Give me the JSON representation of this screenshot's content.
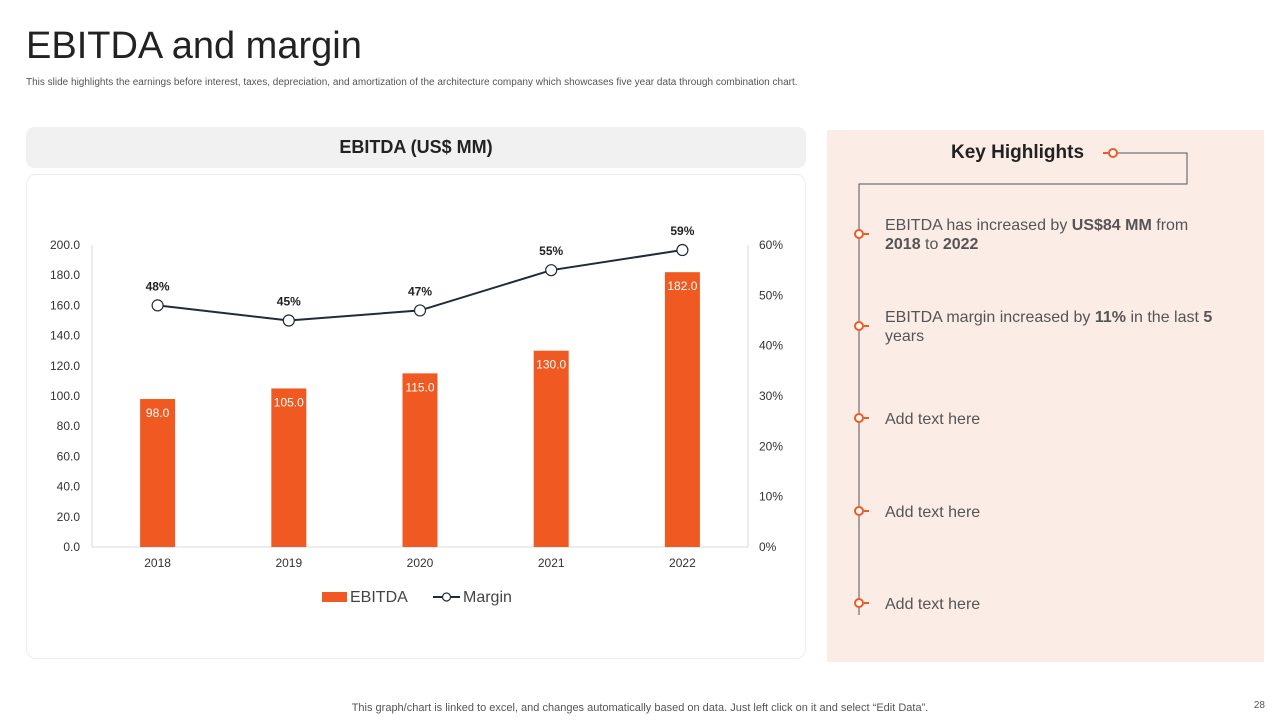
{
  "page": {
    "title": "EBITDA and margin",
    "subtitle": "This slide highlights the earnings before interest, taxes, depreciation, and amortization of the architecture company which showcases five year data through combination chart.",
    "footer": "This graph/chart is linked to excel,  and changes automatically based on data. Just left click on it and select “Edit Data”.",
    "page_number": "28"
  },
  "chart_header": "EBITDA (US$ MM)",
  "chart_data": {
    "type": "bar",
    "title": "EBITDA (US$ MM)",
    "categories": [
      "2018",
      "2019",
      "2020",
      "2021",
      "2022"
    ],
    "series": [
      {
        "name": "EBITDA",
        "type": "bar",
        "axis": "left",
        "values": [
          98.0,
          105.0,
          115.0,
          130.0,
          182.0
        ],
        "labels": [
          "98.0",
          "105.0",
          "115.0",
          "130.0",
          "182.0"
        ]
      },
      {
        "name": "Margin",
        "type": "line",
        "axis": "right",
        "values": [
          48,
          45,
          47,
          55,
          59
        ],
        "labels": [
          "48%",
          "45%",
          "47%",
          "55%",
          "59%"
        ]
      }
    ],
    "ylim": [
      0,
      200
    ],
    "yticks": [
      "0.0",
      "20.0",
      "40.0",
      "60.0",
      "80.0",
      "100.0",
      "120.0",
      "140.0",
      "160.0",
      "180.0",
      "200.0"
    ],
    "y2lim": [
      0,
      60
    ],
    "y2ticks": [
      "0%",
      "10%",
      "20%",
      "30%",
      "40%",
      "50%",
      "60%"
    ],
    "legend": [
      "EBITDA",
      "Margin"
    ],
    "legend_position": "bottom",
    "colors": {
      "bar": "#f05a22",
      "line": "#222a3a"
    }
  },
  "highlights": {
    "title": "Key Highlights",
    "items": [
      {
        "parts": [
          {
            "t": "EBITDA has increased by ",
            "b": false
          },
          {
            "t": "US$84 MM",
            "b": true
          },
          {
            "t": " from ",
            "b": false
          },
          {
            "t": "2018",
            "b": true
          },
          {
            "t": " to ",
            "b": false
          },
          {
            "t": "2022",
            "b": true
          }
        ]
      },
      {
        "parts": [
          {
            "t": "EBITDA margin increased by ",
            "b": false
          },
          {
            "t": "11%",
            "b": true
          },
          {
            "t": " in the last ",
            "b": false
          },
          {
            "t": "5",
            "b": true
          },
          {
            "t": " years",
            "b": false
          }
        ]
      },
      {
        "parts": [
          {
            "t": "Add text here",
            "b": false
          }
        ]
      },
      {
        "parts": [
          {
            "t": "Add text here",
            "b": false
          }
        ]
      },
      {
        "parts": [
          {
            "t": "Add text here",
            "b": false
          }
        ]
      }
    ]
  },
  "colors": {
    "accent": "#f05a22",
    "panel": "#fcece6",
    "header": "#f1f1f1"
  }
}
